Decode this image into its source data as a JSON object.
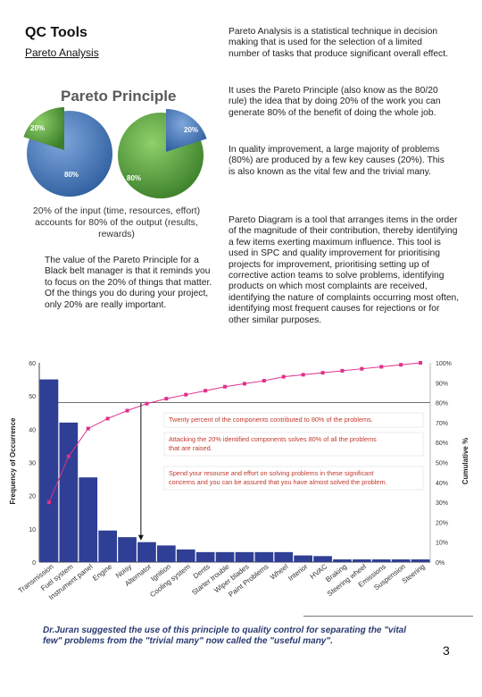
{
  "header": {
    "title": "QC Tools",
    "subtitle": "Pareto Analysis"
  },
  "paragraphs": {
    "p1": "Pareto Analysis is a statistical technique in decision making that is used for the selection of a limited number of tasks that produce significant overall effect.",
    "p2": "It uses the Pareto Principle (also know as the 80/20 rule) the idea that by doing 20% of the work you can generate 80% of the benefit of doing the whole job.",
    "p3": "In quality improvement, a large majority of problems (80%) are produced by a few key causes (20%). This is also known as the vital few and the trivial many.",
    "p4": "Pareto Diagram is a tool that arranges items in the order of the magnitude of their contribution, thereby identifying a few items exerting maximum influence. This tool is used in SPC and quality improvement for prioritising projects for improvement, prioritising setting up of corrective action teams to solve problems, identifying products on which most complaints are received, identifying the nature of complaints occurring most often, identifying most frequent causes for rejections or for other similar purposes.",
    "left": "The value of the Pareto Principle for a Black belt manager is that it reminds you to focus on the 20% of things that matter. Of the things you do during your project, only 20% are really important."
  },
  "pareto_principle": {
    "title": "Pareto Principle",
    "pie1_small": "20%",
    "pie1_large": "80%",
    "pie2_small": "20%",
    "pie2_large": "80%",
    "caption": "20% of the input (time, resources, effort) accounts for 80% of the output (results, rewards)",
    "colors": {
      "blue": "#3f74b8",
      "green": "#4f9a3a"
    }
  },
  "chart_data": {
    "type": "bar",
    "categories": [
      "Transmission",
      "Fuel system",
      "Instrument panel",
      "Engine",
      "Noisy",
      "Alternator",
      "Ignition",
      "Cooling system",
      "Dents",
      "Starter trouble",
      "Wiper blades",
      "Paint Problems",
      "Wheel",
      "Interior",
      "HVAC",
      "Braking",
      "Steering wheel",
      "Emissions",
      "Suspension",
      "Steering"
    ],
    "values": [
      55,
      42,
      25.5,
      9.5,
      7.5,
      6,
      5,
      3.8,
      3,
      3,
      3,
      3,
      3,
      2,
      1.8,
      0.8,
      0.8,
      0.8,
      0.8,
      0.8
    ],
    "cumulative": [
      30,
      53,
      67,
      72,
      76,
      79.5,
      82,
      84,
      86,
      88,
      89.5,
      91,
      93,
      94,
      95,
      96,
      97,
      98,
      99,
      100
    ],
    "ylabel": "Frequency of Occurrence",
    "y2label": "Cumulative %",
    "ylim": [
      0,
      60
    ],
    "yticks": [
      "0",
      "10",
      "20",
      "30",
      "40",
      "50",
      "60"
    ],
    "y2ticks": [
      "0%",
      "10%",
      "20%",
      "30%",
      "40%",
      "50%",
      "60%",
      "70%",
      "80%",
      "90%",
      "100%"
    ],
    "annotations": [
      "Twenty percent of the components contributed to 80% of the problems.",
      "Attacking the 20% identified components solves 80% of all the problems that are raised.",
      "Spend your resourse and effort on solving problems in these significant concerns and you can be assured that you have almost solved the problem."
    ],
    "colors": {
      "bar": "#2f3f95",
      "line": "#e0308a",
      "annotation": "#c0392b"
    }
  },
  "footer": {
    "note": "Dr.Juran suggested the use of this principle to quality control for separating the \"vital few\" problems from the \"trivial many\" now called the \"useful many\".",
    "page_number": "3"
  }
}
